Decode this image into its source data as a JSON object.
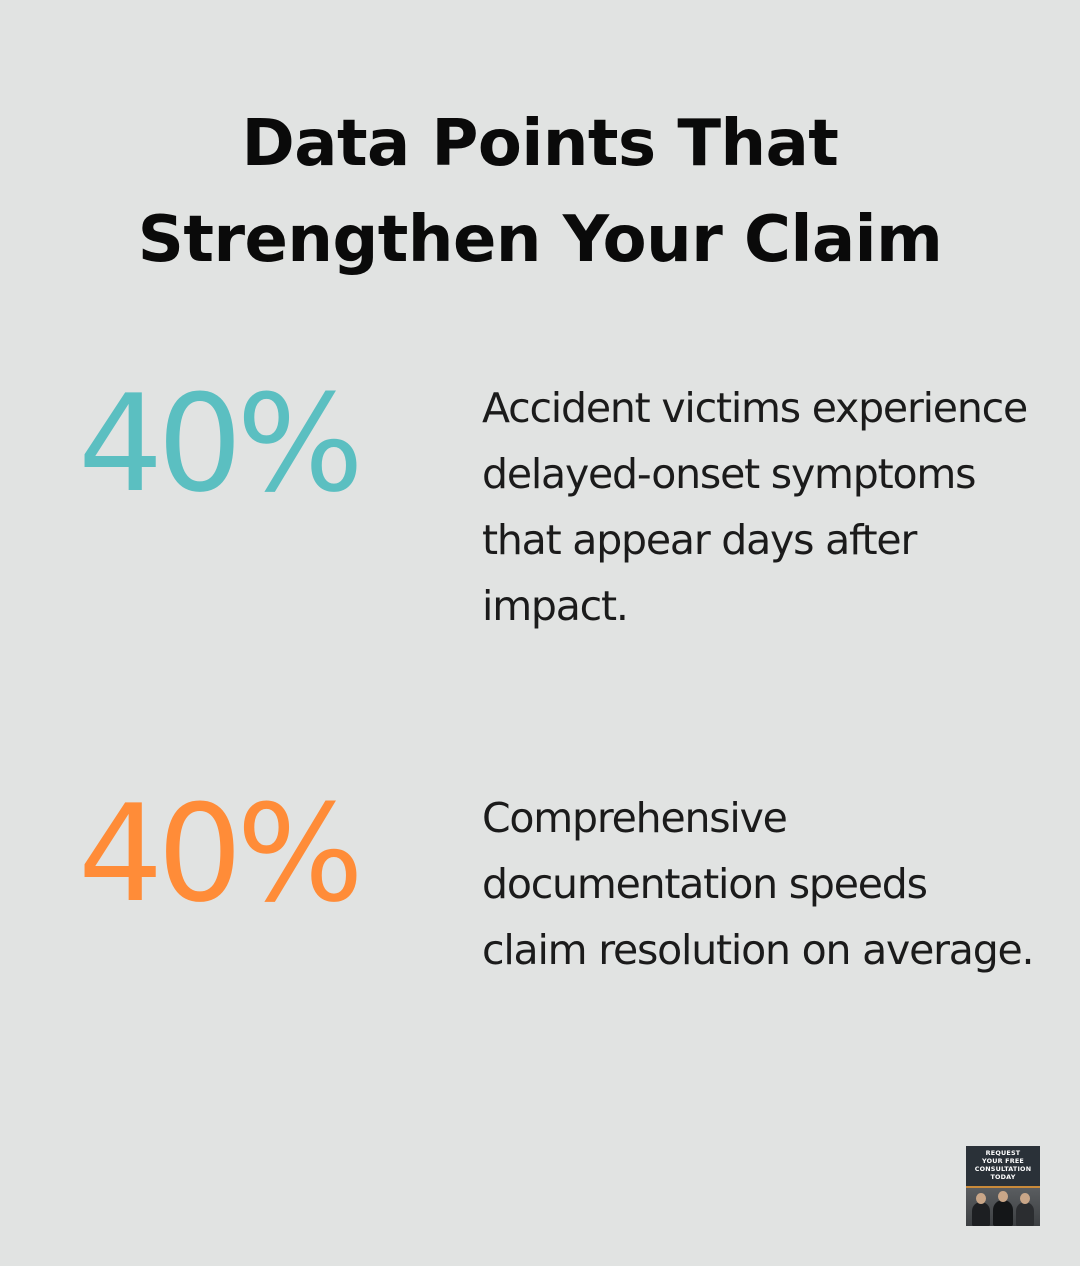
{
  "title": {
    "line1": "Data Points That",
    "line2": "Strengthen Your Claim"
  },
  "stats": [
    {
      "value": "40%",
      "color": "#5bbfc1",
      "description": "Accident victims experience delayed-onset symptoms that appear days after impact."
    },
    {
      "value": "40%",
      "color": "#ff8c38",
      "description": "Comprehensive documentation speeds claim resolution on average."
    }
  ],
  "cta": {
    "lines": [
      "REQUEST",
      "YOUR FREE",
      "CONSULTATION",
      "TODAY"
    ],
    "background": "#2a3138",
    "accent": "#c98a3a"
  }
}
